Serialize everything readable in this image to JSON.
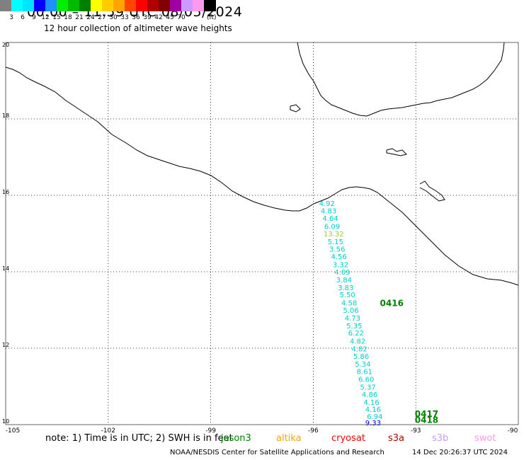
{
  "header": {
    "title": "00:00 – 11:59 UTC 08/05/2024",
    "subtitle": "12 hour collection of altimeter wave heights"
  },
  "legend": {
    "unit": "(ft)",
    "colors": [
      "#808080",
      "#00ffff",
      "#00e5ff",
      "#0000ff",
      "#1e90ff",
      "#00ee00",
      "#00bb00",
      "#008000",
      "#ffff00",
      "#ffcc00",
      "#ffa500",
      "#ff4500",
      "#ff0000",
      "#b00000",
      "#800000",
      "#a000a0",
      "#cc99ff",
      "#ff99ee",
      "#000000"
    ],
    "labels": [
      "3",
      "6",
      "9",
      "12",
      "15",
      "18",
      "21",
      "24",
      "27",
      "30",
      "33",
      "36",
      "39",
      "42",
      "45",
      "70"
    ]
  },
  "axes": {
    "lat_labels": [
      "20",
      "18",
      "16",
      "14",
      "12",
      "10"
    ],
    "lon_labels": [
      "-105",
      "-102",
      "-99",
      "-96",
      "-93",
      "-90"
    ],
    "lat_range": [
      10,
      20
    ],
    "lon_range": [
      -105,
      -90
    ]
  },
  "track": {
    "color": "#00cccc",
    "points": [
      {
        "lat": 15.72,
        "lon": -95.6,
        "v": "4.92"
      },
      {
        "lat": 15.53,
        "lon": -95.55,
        "v": "4.83"
      },
      {
        "lat": 15.33,
        "lon": -95.5,
        "v": "4.64"
      },
      {
        "lat": 15.12,
        "lon": -95.45,
        "v": "6.09"
      },
      {
        "lat": 14.93,
        "lon": -95.4,
        "v": "13.32",
        "color": "#99cc33"
      },
      {
        "lat": 14.72,
        "lon": -95.35,
        "v": "5.15"
      },
      {
        "lat": 14.53,
        "lon": -95.3,
        "v": "3.56"
      },
      {
        "lat": 14.33,
        "lon": -95.25,
        "v": "4.56"
      },
      {
        "lat": 14.12,
        "lon": -95.2,
        "v": "3.32"
      },
      {
        "lat": 13.93,
        "lon": -95.15,
        "v": "4.09"
      },
      {
        "lat": 13.72,
        "lon": -95.1,
        "v": "3.84"
      },
      {
        "lat": 13.52,
        "lon": -95.05,
        "v": "3.83"
      },
      {
        "lat": 13.33,
        "lon": -95.0,
        "v": "5.50"
      },
      {
        "lat": 13.12,
        "lon": -94.95,
        "v": "4.58"
      },
      {
        "lat": 12.93,
        "lon": -94.9,
        "v": "5.06"
      },
      {
        "lat": 12.72,
        "lon": -94.85,
        "v": "4.73"
      },
      {
        "lat": 12.52,
        "lon": -94.8,
        "v": "5.35"
      },
      {
        "lat": 12.33,
        "lon": -94.75,
        "v": "6.22"
      },
      {
        "lat": 12.12,
        "lon": -94.7,
        "v": "4.82"
      },
      {
        "lat": 11.92,
        "lon": -94.65,
        "v": "4.82"
      },
      {
        "lat": 11.72,
        "lon": -94.6,
        "v": "5.86"
      },
      {
        "lat": 11.52,
        "lon": -94.55,
        "v": "5.34"
      },
      {
        "lat": 11.32,
        "lon": -94.5,
        "v": "8.61"
      },
      {
        "lat": 11.12,
        "lon": -94.45,
        "v": "6.60"
      },
      {
        "lat": 10.92,
        "lon": -94.4,
        "v": "5.37"
      },
      {
        "lat": 10.72,
        "lon": -94.35,
        "v": "4.86"
      },
      {
        "lat": 10.52,
        "lon": -94.3,
        "v": "4.16"
      },
      {
        "lat": 10.33,
        "lon": -94.25,
        "v": "4.16"
      },
      {
        "lat": 10.15,
        "lon": -94.2,
        "v": "6.94"
      },
      {
        "lat": 9.98,
        "lon": -94.25,
        "v": "9.33",
        "color": "#0000cc"
      }
    ]
  },
  "annotations": [
    {
      "lat": 13.1,
      "lon": -94.05,
      "v": "0416",
      "color": "#008000"
    },
    {
      "lat": 10.2,
      "lon": -93.03,
      "v": "0417",
      "color": "#008000"
    },
    {
      "lat": 10.05,
      "lon": -93.03,
      "v": "0418",
      "color": "#008000"
    }
  ],
  "footer": {
    "note": "note:  1) Time is in UTC;  2) SWH is in feet",
    "satellites": [
      {
        "name": "jason3",
        "color": "#008000"
      },
      {
        "name": "altika",
        "color": "#ffa500"
      },
      {
        "name": "cryosat",
        "color": "#ff0000"
      },
      {
        "name": "s3a",
        "color": "#b00000"
      },
      {
        "name": "s3b",
        "color": "#cc99ff"
      },
      {
        "name": "swot",
        "color": "#ff99ee"
      }
    ],
    "credit": "NOAA/NESDIS Center for Satellite Applications and Research",
    "timestamp": "14 Dec 20:26:37 UTC 2024"
  }
}
